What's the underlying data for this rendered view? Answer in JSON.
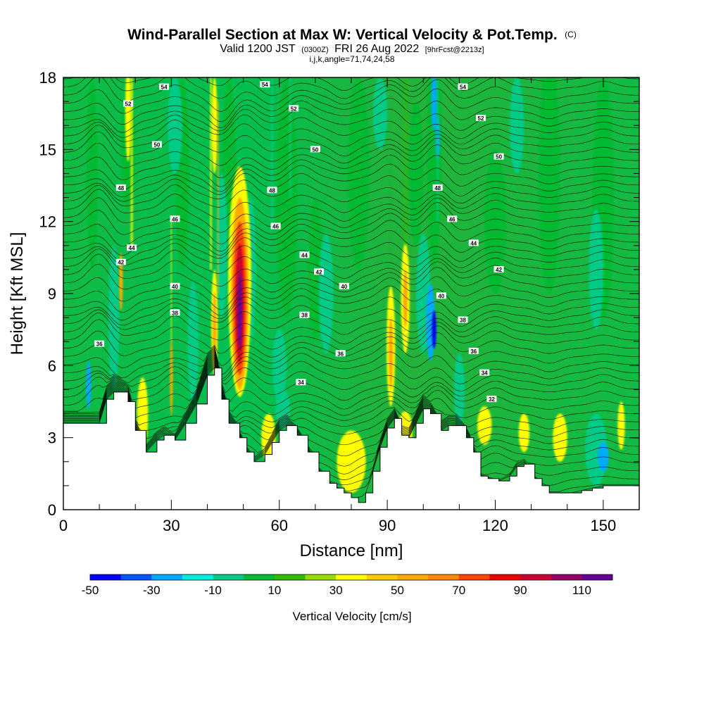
{
  "chart_data": {
    "type": "heatmap",
    "title": "Wind-Parallel Section at Max W: Vertical Velocity & Pot.Temp.",
    "title_suffix": "(C)",
    "subtitle_a": "Valid 1200 JST",
    "subtitle_b": "(0300Z)",
    "subtitle_c": "FRI 26 Aug 2022",
    "subtitle_d": "[9hrFcst@2213z]",
    "info": "i,j,k,angle=71,74,24,58",
    "xlabel": "Distance [nm]",
    "ylabel": "Height [Kft MSL]",
    "xlim": [
      0,
      160
    ],
    "ylim": [
      0,
      18
    ],
    "xticks": [
      0,
      30,
      60,
      90,
      120,
      150
    ],
    "xtick_labels": [
      "0",
      "30",
      "60",
      "90",
      "120",
      "150"
    ],
    "yticks": [
      0,
      3,
      6,
      9,
      12,
      15,
      18
    ],
    "ytick_labels": [
      "0",
      "3",
      "6",
      "9",
      "12",
      "15",
      "18"
    ],
    "colorbar": {
      "label": "Vertical Velocity [cm/s]",
      "min": -50,
      "max": 120,
      "step": 10,
      "colors": [
        "#0000ff",
        "#0055ff",
        "#00aaff",
        "#00eedd",
        "#00cc88",
        "#00bb33",
        "#33bb00",
        "#99dd00",
        "#ffff00",
        "#ffcc00",
        "#ffaa00",
        "#ff8800",
        "#ff4400",
        "#ee0000",
        "#cc0033",
        "#990066",
        "#660099"
      ],
      "tick_values": [
        -50,
        -30,
        -10,
        10,
        30,
        50,
        70,
        90,
        110
      ],
      "tick_labels": [
        "-50",
        "-30",
        "-10",
        "10",
        "30",
        "50",
        "70",
        "90",
        "110"
      ]
    },
    "terrain_kft": [
      [
        0,
        3.6
      ],
      [
        10,
        3.6
      ],
      [
        12,
        4.6
      ],
      [
        14,
        4.9
      ],
      [
        18,
        4.5
      ],
      [
        20,
        3.3
      ],
      [
        23,
        2.4
      ],
      [
        26,
        2.9
      ],
      [
        28,
        3.1
      ],
      [
        31,
        2.9
      ],
      [
        34,
        3.6
      ],
      [
        37,
        4.4
      ],
      [
        40,
        5.6
      ],
      [
        42,
        5.9
      ],
      [
        44,
        4.6
      ],
      [
        46,
        3.6
      ],
      [
        49,
        3.0
      ],
      [
        51,
        2.4
      ],
      [
        53,
        2.0
      ],
      [
        56,
        2.3
      ],
      [
        58,
        2.8
      ],
      [
        60,
        3.3
      ],
      [
        62,
        3.5
      ],
      [
        65,
        3.1
      ],
      [
        68,
        2.4
      ],
      [
        71,
        1.6
      ],
      [
        74,
        1.1
      ],
      [
        76,
        0.9
      ],
      [
        78,
        0.7
      ],
      [
        80,
        0.5
      ],
      [
        82,
        0.3
      ],
      [
        84,
        0.7
      ],
      [
        86,
        1.6
      ],
      [
        88,
        2.6
      ],
      [
        90,
        3.4
      ],
      [
        92,
        3.8
      ],
      [
        94,
        3.1
      ],
      [
        96,
        3.0
      ],
      [
        98,
        3.6
      ],
      [
        100,
        4.2
      ],
      [
        102,
        4.0
      ],
      [
        105,
        3.3
      ],
      [
        107,
        3.5
      ],
      [
        109,
        3.5
      ],
      [
        112,
        3.0
      ],
      [
        114,
        2.4
      ],
      [
        116,
        1.4
      ],
      [
        118,
        1.3
      ],
      [
        121,
        1.2
      ],
      [
        124,
        1.4
      ],
      [
        126,
        1.8
      ],
      [
        128,
        1.9
      ],
      [
        131,
        1.3
      ],
      [
        133,
        1.0
      ],
      [
        135,
        0.7
      ],
      [
        138,
        0.7
      ],
      [
        141,
        0.7
      ],
      [
        144,
        0.8
      ],
      [
        147,
        0.9
      ],
      [
        150,
        1.0
      ],
      [
        153,
        1.0
      ],
      [
        156,
        1.0
      ],
      [
        160,
        1.0
      ]
    ],
    "contour_labels": [
      {
        "x": 56,
        "y": 17.7,
        "text": "54"
      },
      {
        "x": 28,
        "y": 17.6,
        "text": "54"
      },
      {
        "x": 111,
        "y": 17.6,
        "text": "54"
      },
      {
        "x": 18,
        "y": 16.9,
        "text": "52"
      },
      {
        "x": 64,
        "y": 16.7,
        "text": "52"
      },
      {
        "x": 116,
        "y": 16.3,
        "text": "52"
      },
      {
        "x": 26,
        "y": 15.2,
        "text": "50"
      },
      {
        "x": 70,
        "y": 15.0,
        "text": "50"
      },
      {
        "x": 121,
        "y": 14.7,
        "text": "50"
      },
      {
        "x": 16,
        "y": 13.4,
        "text": "48"
      },
      {
        "x": 58,
        "y": 13.3,
        "text": "48"
      },
      {
        "x": 104,
        "y": 13.4,
        "text": "48"
      },
      {
        "x": 31,
        "y": 12.1,
        "text": "46"
      },
      {
        "x": 59,
        "y": 11.8,
        "text": "46"
      },
      {
        "x": 108,
        "y": 12.1,
        "text": "46"
      },
      {
        "x": 19,
        "y": 10.9,
        "text": "44"
      },
      {
        "x": 67,
        "y": 10.6,
        "text": "44"
      },
      {
        "x": 114,
        "y": 11.1,
        "text": "44"
      },
      {
        "x": 16,
        "y": 10.3,
        "text": "42"
      },
      {
        "x": 71,
        "y": 9.9,
        "text": "42"
      },
      {
        "x": 121,
        "y": 10.0,
        "text": "42"
      },
      {
        "x": 31,
        "y": 9.3,
        "text": "40"
      },
      {
        "x": 78,
        "y": 9.3,
        "text": "40"
      },
      {
        "x": 105,
        "y": 8.9,
        "text": "40"
      },
      {
        "x": 31,
        "y": 8.2,
        "text": "38"
      },
      {
        "x": 67,
        "y": 8.1,
        "text": "38"
      },
      {
        "x": 111,
        "y": 7.9,
        "text": "38"
      },
      {
        "x": 10,
        "y": 6.9,
        "text": "36"
      },
      {
        "x": 77,
        "y": 6.5,
        "text": "36"
      },
      {
        "x": 114,
        "y": 6.6,
        "text": "36"
      },
      {
        "x": 66,
        "y": 5.3,
        "text": "34"
      },
      {
        "x": 117,
        "y": 5.7,
        "text": "34"
      },
      {
        "x": 119,
        "y": 4.6,
        "text": "32"
      }
    ]
  }
}
